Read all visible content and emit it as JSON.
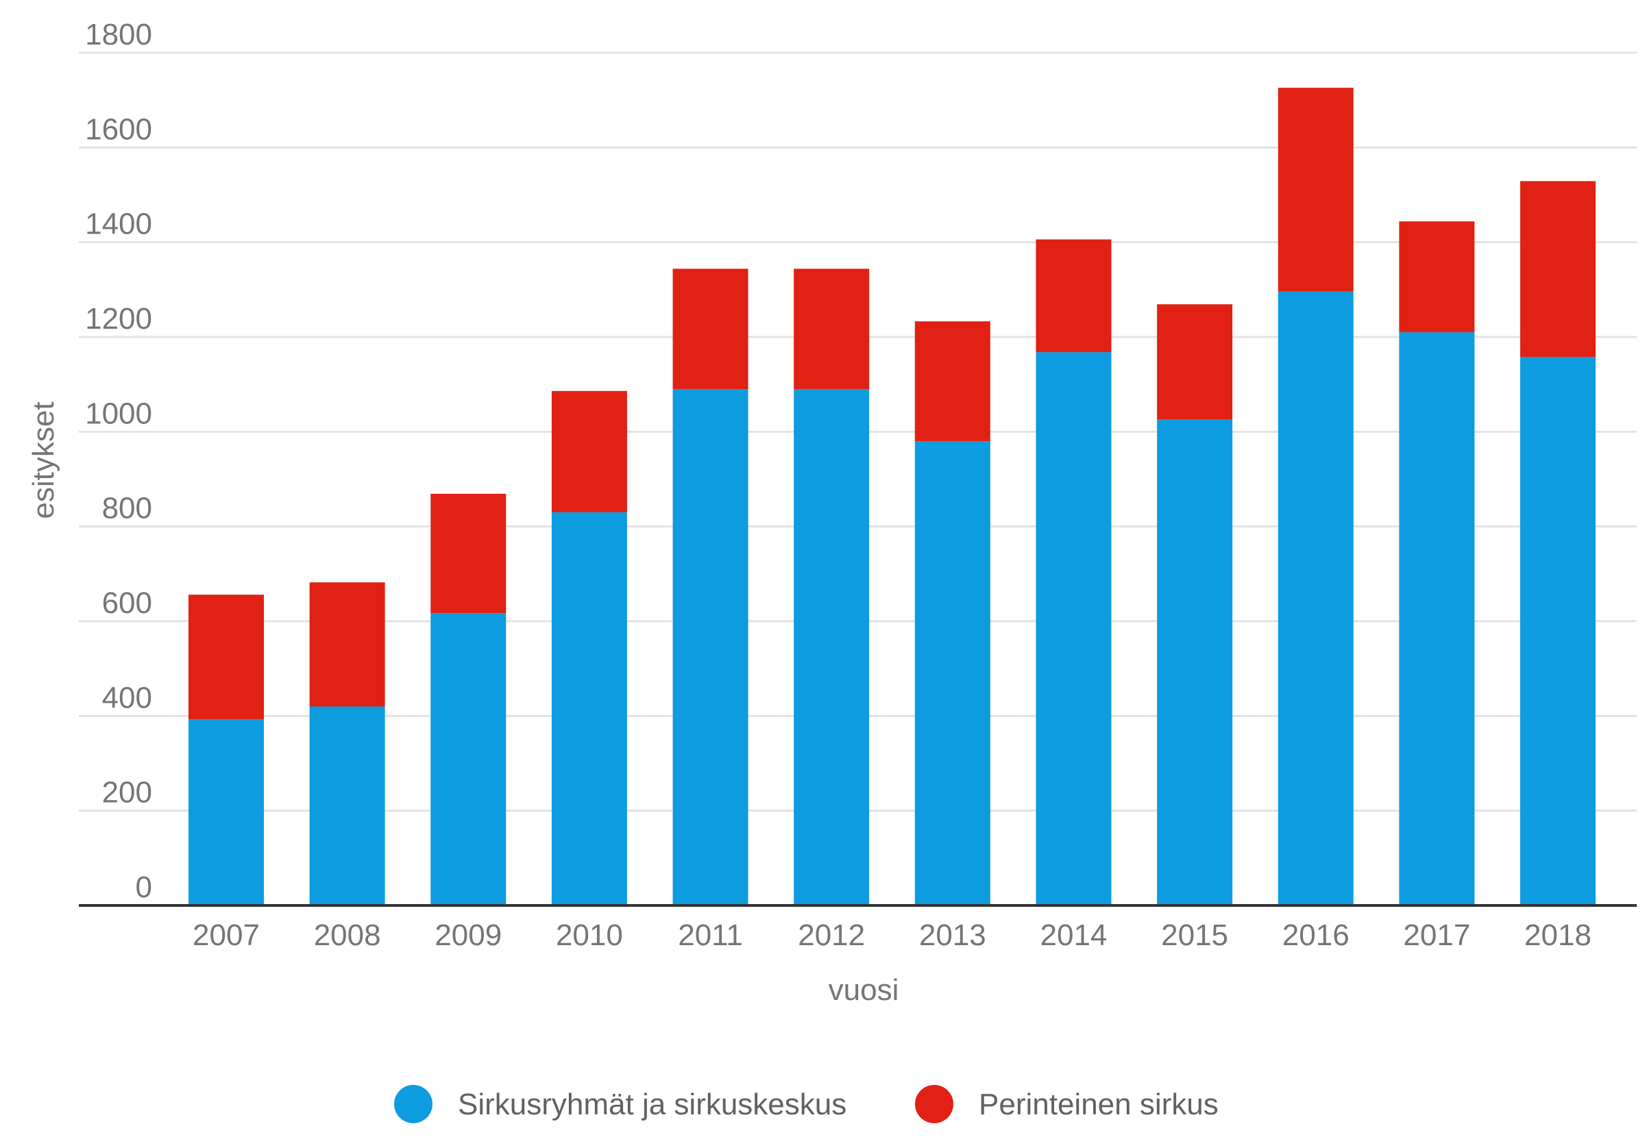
{
  "chart_data": {
    "type": "bar",
    "stacked": true,
    "xlabel": "vuosi",
    "ylabel": "esitykset",
    "ylim": [
      0,
      1800
    ],
    "yticks": [
      0,
      200,
      400,
      600,
      800,
      1000,
      1200,
      1400,
      1600,
      1800
    ],
    "grid": true,
    "legend_position": "bottom",
    "categories": [
      "2007",
      "2008",
      "2009",
      "2010",
      "2011",
      "2012",
      "2013",
      "2014",
      "2015",
      "2016",
      "2017",
      "2018"
    ],
    "series": [
      {
        "name": "Sirkusryhmät ja sirkuskeskus",
        "color": "#0e9ce0",
        "values": [
          393,
          420,
          617,
          830,
          1090,
          1090,
          980,
          1168,
          1026,
          1296,
          1210,
          1158
        ]
      },
      {
        "name": "Perinteinen sirkus",
        "color": "#e02114",
        "values": [
          263,
          262,
          252,
          256,
          254,
          254,
          253,
          238,
          243,
          430,
          234,
          371
        ]
      }
    ]
  }
}
